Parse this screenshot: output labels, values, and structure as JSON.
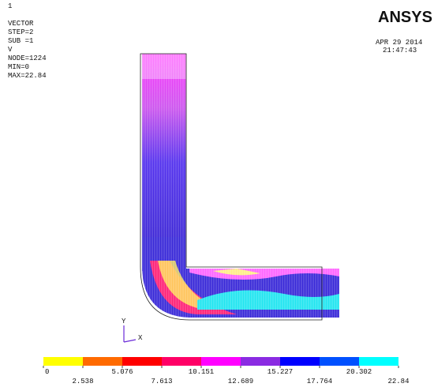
{
  "window_number": "1",
  "info": [
    "VECTOR",
    "STEP=2",
    "SUB =1",
    "V",
    "NODE=1224",
    "MIN=0",
    "MAX=22.84"
  ],
  "logo": "ANSYS",
  "date": "APR 29 2014",
  "time": "21:47:43",
  "axes": {
    "y": "Y",
    "x": "X"
  },
  "legend": {
    "colors": [
      "#ffff00",
      "#ff6a00",
      "#ff0000",
      "#ff0066",
      "#ff00ff",
      "#8a2be2",
      "#0000ff",
      "#0050ff",
      "#00ffff"
    ],
    "values": [
      0,
      2.538,
      5.076,
      7.613,
      10.151,
      12.689,
      15.227,
      17.764,
      20.302,
      22.84
    ]
  }
}
